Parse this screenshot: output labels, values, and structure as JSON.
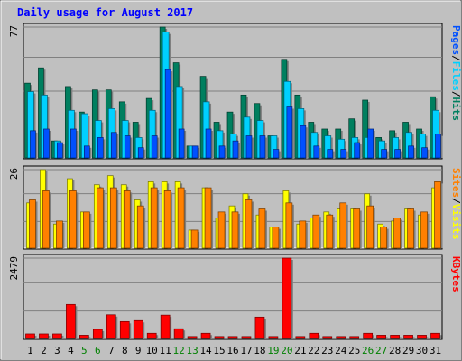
{
  "chart_data": [
    {
      "type": "bar",
      "title": "Daily usage for August 2017",
      "ylabel_parts": [
        "Pages",
        "/",
        "Files",
        "/",
        "Hits"
      ],
      "ymax_label": "77",
      "ylim": [
        0,
        77
      ],
      "categories": [
        "1",
        "2",
        "3",
        "4",
        "5",
        "6",
        "7",
        "8",
        "9",
        "10",
        "11",
        "12",
        "13",
        "14",
        "15",
        "16",
        "17",
        "18",
        "19",
        "20",
        "21",
        "22",
        "23",
        "24",
        "25",
        "26",
        "27",
        "28",
        "29",
        "30",
        "31"
      ],
      "series": [
        {
          "name": "Hits",
          "values": [
            44,
            53,
            10,
            42,
            27,
            40,
            40,
            33,
            21,
            35,
            77,
            56,
            7,
            48,
            21,
            27,
            37,
            32,
            13,
            58,
            37,
            21,
            17,
            17,
            23,
            34,
            12,
            16,
            21,
            17,
            36
          ]
        },
        {
          "name": "Files",
          "values": [
            39,
            37,
            10,
            28,
            26,
            22,
            29,
            22,
            12,
            28,
            74,
            42,
            7,
            33,
            16,
            14,
            24,
            22,
            13,
            45,
            29,
            15,
            13,
            11,
            12,
            12,
            10,
            12,
            15,
            14,
            28
          ]
        },
        {
          "name": "Pages",
          "values": [
            16,
            17,
            9,
            17,
            7,
            12,
            15,
            13,
            6,
            13,
            52,
            17,
            7,
            17,
            7,
            10,
            13,
            13,
            5,
            30,
            19,
            7,
            5,
            5,
            9,
            17,
            5,
            5,
            7,
            6,
            14
          ]
        }
      ]
    },
    {
      "type": "bar",
      "ylabel_parts": [
        "Sites",
        "/",
        "Visits"
      ],
      "ymax_label": "26",
      "ylim": [
        0,
        26
      ],
      "series": [
        {
          "name": "Visits",
          "values": [
            15,
            26,
            8,
            23,
            12,
            21,
            24,
            21,
            16,
            22,
            22,
            22,
            6,
            20,
            10,
            14,
            18,
            11,
            7,
            19,
            8,
            10,
            12,
            13,
            13,
            18,
            8,
            9,
            13,
            11,
            20
          ]
        },
        {
          "name": "Sites",
          "values": [
            16,
            19,
            9,
            19,
            12,
            20,
            20,
            19,
            14,
            20,
            19,
            20,
            6,
            20,
            12,
            12,
            16,
            13,
            7,
            15,
            9,
            11,
            11,
            15,
            13,
            14,
            7,
            10,
            13,
            12,
            22
          ]
        }
      ]
    },
    {
      "type": "bar",
      "ylabel_parts": [
        "KBytes"
      ],
      "ymax_label": "2479",
      "ylim": [
        0,
        2479
      ],
      "series": [
        {
          "name": "KBytes",
          "values": [
            140,
            140,
            140,
            1050,
            100,
            280,
            730,
            520,
            550,
            160,
            720,
            300,
            60,
            160,
            60,
            60,
            60,
            660,
            60,
            2479,
            60,
            160,
            60,
            60,
            60,
            160,
            100,
            100,
            100,
            100,
            160
          ]
        }
      ]
    }
  ],
  "weekend_days": [
    "5",
    "6",
    "12",
    "13",
    "19",
    "20",
    "26",
    "27"
  ],
  "colors": {
    "background": "#c0c0c0",
    "plot_background": "#c0c0c0",
    "title": "#0000ff",
    "hits": "#007f5f",
    "files": "#00d0ff",
    "pages": "#0050ff",
    "visits": "#ffff00",
    "sites": "#ff8000",
    "kbytes": "#ff0000",
    "weekday_label": "#000000",
    "weekend_label": "#008000"
  }
}
